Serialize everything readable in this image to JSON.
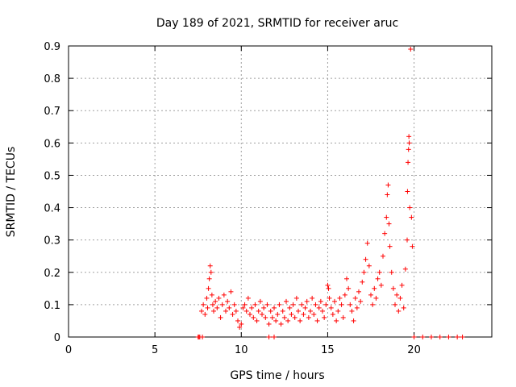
{
  "chart_data": {
    "type": "scatter",
    "title": "Day 189 of 2021, SRMTID for receiver aruc",
    "xlabel": "GPS time / hours",
    "ylabel": "SRMTID / TECUs",
    "xlim": [
      0,
      24.5
    ],
    "ylim": [
      0,
      0.9
    ],
    "xticks": [
      0,
      5,
      10,
      15,
      20
    ],
    "yticks": [
      0,
      0.1,
      0.2,
      0.3,
      0.4,
      0.5,
      0.6,
      0.7,
      0.8,
      0.9
    ],
    "xtick_labels": [
      "0",
      "5",
      "10",
      "15",
      "20"
    ],
    "ytick_labels": [
      "0",
      "0.1",
      "0.2",
      "0.3",
      "0.4",
      "0.5",
      "0.6",
      "0.7",
      "0.8",
      "0.9"
    ],
    "grid": true,
    "marker": "+",
    "color": "#ff0000",
    "series": [
      {
        "name": "SRMTID",
        "x": [
          7.5,
          7.6,
          7.7,
          7.8,
          7.9,
          8.0,
          8.05,
          8.1,
          8.15,
          8.2,
          8.25,
          8.3,
          8.35,
          8.4,
          8.5,
          8.6,
          8.7,
          8.8,
          8.9,
          9.0,
          9.1,
          9.2,
          9.3,
          9.4,
          9.5,
          9.6,
          9.7,
          9.8,
          9.9,
          10.0,
          10.1,
          10.2,
          10.3,
          10.4,
          10.5,
          10.6,
          10.7,
          10.8,
          10.9,
          11.0,
          11.1,
          11.2,
          11.3,
          11.4,
          11.5,
          11.6,
          11.7,
          11.8,
          11.9,
          12.0,
          12.1,
          12.2,
          12.3,
          12.4,
          12.5,
          12.6,
          12.7,
          12.8,
          12.9,
          13.0,
          13.1,
          13.2,
          13.3,
          13.4,
          13.5,
          13.6,
          13.7,
          13.8,
          13.9,
          14.0,
          14.1,
          14.2,
          14.3,
          14.4,
          14.5,
          14.6,
          14.7,
          14.8,
          14.9,
          15.0,
          15.05,
          15.1,
          15.2,
          15.3,
          15.4,
          15.5,
          15.6,
          15.7,
          15.8,
          15.9,
          16.0,
          16.1,
          16.2,
          16.3,
          16.4,
          16.5,
          16.6,
          16.7,
          16.8,
          16.9,
          17.0,
          17.1,
          17.2,
          17.3,
          17.4,
          17.5,
          17.6,
          17.7,
          17.8,
          17.9,
          18.0,
          18.1,
          18.2,
          18.3,
          18.4,
          18.45,
          18.5,
          18.55,
          18.6,
          18.7,
          18.8,
          18.9,
          19.0,
          19.1,
          19.2,
          19.3,
          19.4,
          19.5,
          19.6,
          19.62,
          19.65,
          19.68,
          19.7,
          19.72,
          19.75,
          19.8,
          19.85,
          19.9,
          20.0,
          20.5,
          21.0,
          21.5,
          22.0,
          22.5,
          22.8,
          11.6,
          11.9,
          7.55,
          7.75
        ],
        "y": [
          0.0,
          0.0,
          0.08,
          0.1,
          0.07,
          0.12,
          0.09,
          0.15,
          0.18,
          0.22,
          0.2,
          0.13,
          0.1,
          0.08,
          0.11,
          0.09,
          0.12,
          0.06,
          0.1,
          0.13,
          0.08,
          0.11,
          0.09,
          0.14,
          0.07,
          0.1,
          0.08,
          0.05,
          0.03,
          0.04,
          0.09,
          0.1,
          0.08,
          0.12,
          0.07,
          0.09,
          0.06,
          0.1,
          0.05,
          0.08,
          0.11,
          0.07,
          0.09,
          0.06,
          0.1,
          0.04,
          0.08,
          0.06,
          0.09,
          0.05,
          0.07,
          0.1,
          0.04,
          0.08,
          0.06,
          0.11,
          0.05,
          0.09,
          0.07,
          0.1,
          0.06,
          0.12,
          0.08,
          0.05,
          0.1,
          0.07,
          0.09,
          0.11,
          0.06,
          0.08,
          0.12,
          0.07,
          0.1,
          0.05,
          0.09,
          0.11,
          0.08,
          0.06,
          0.1,
          0.16,
          0.15,
          0.12,
          0.09,
          0.07,
          0.11,
          0.05,
          0.08,
          0.12,
          0.1,
          0.06,
          0.13,
          0.18,
          0.15,
          0.1,
          0.08,
          0.05,
          0.12,
          0.09,
          0.14,
          0.11,
          0.17,
          0.2,
          0.24,
          0.29,
          0.22,
          0.13,
          0.1,
          0.15,
          0.12,
          0.18,
          0.2,
          0.16,
          0.25,
          0.32,
          0.37,
          0.44,
          0.47,
          0.35,
          0.28,
          0.2,
          0.15,
          0.1,
          0.13,
          0.08,
          0.12,
          0.16,
          0.09,
          0.21,
          0.3,
          0.45,
          0.54,
          0.58,
          0.62,
          0.6,
          0.4,
          0.89,
          0.37,
          0.28,
          0.0,
          0.0,
          0.0,
          0.0,
          0.0,
          0.0,
          0.0,
          0.0,
          0.0,
          0.0,
          0.0
        ]
      }
    ]
  }
}
